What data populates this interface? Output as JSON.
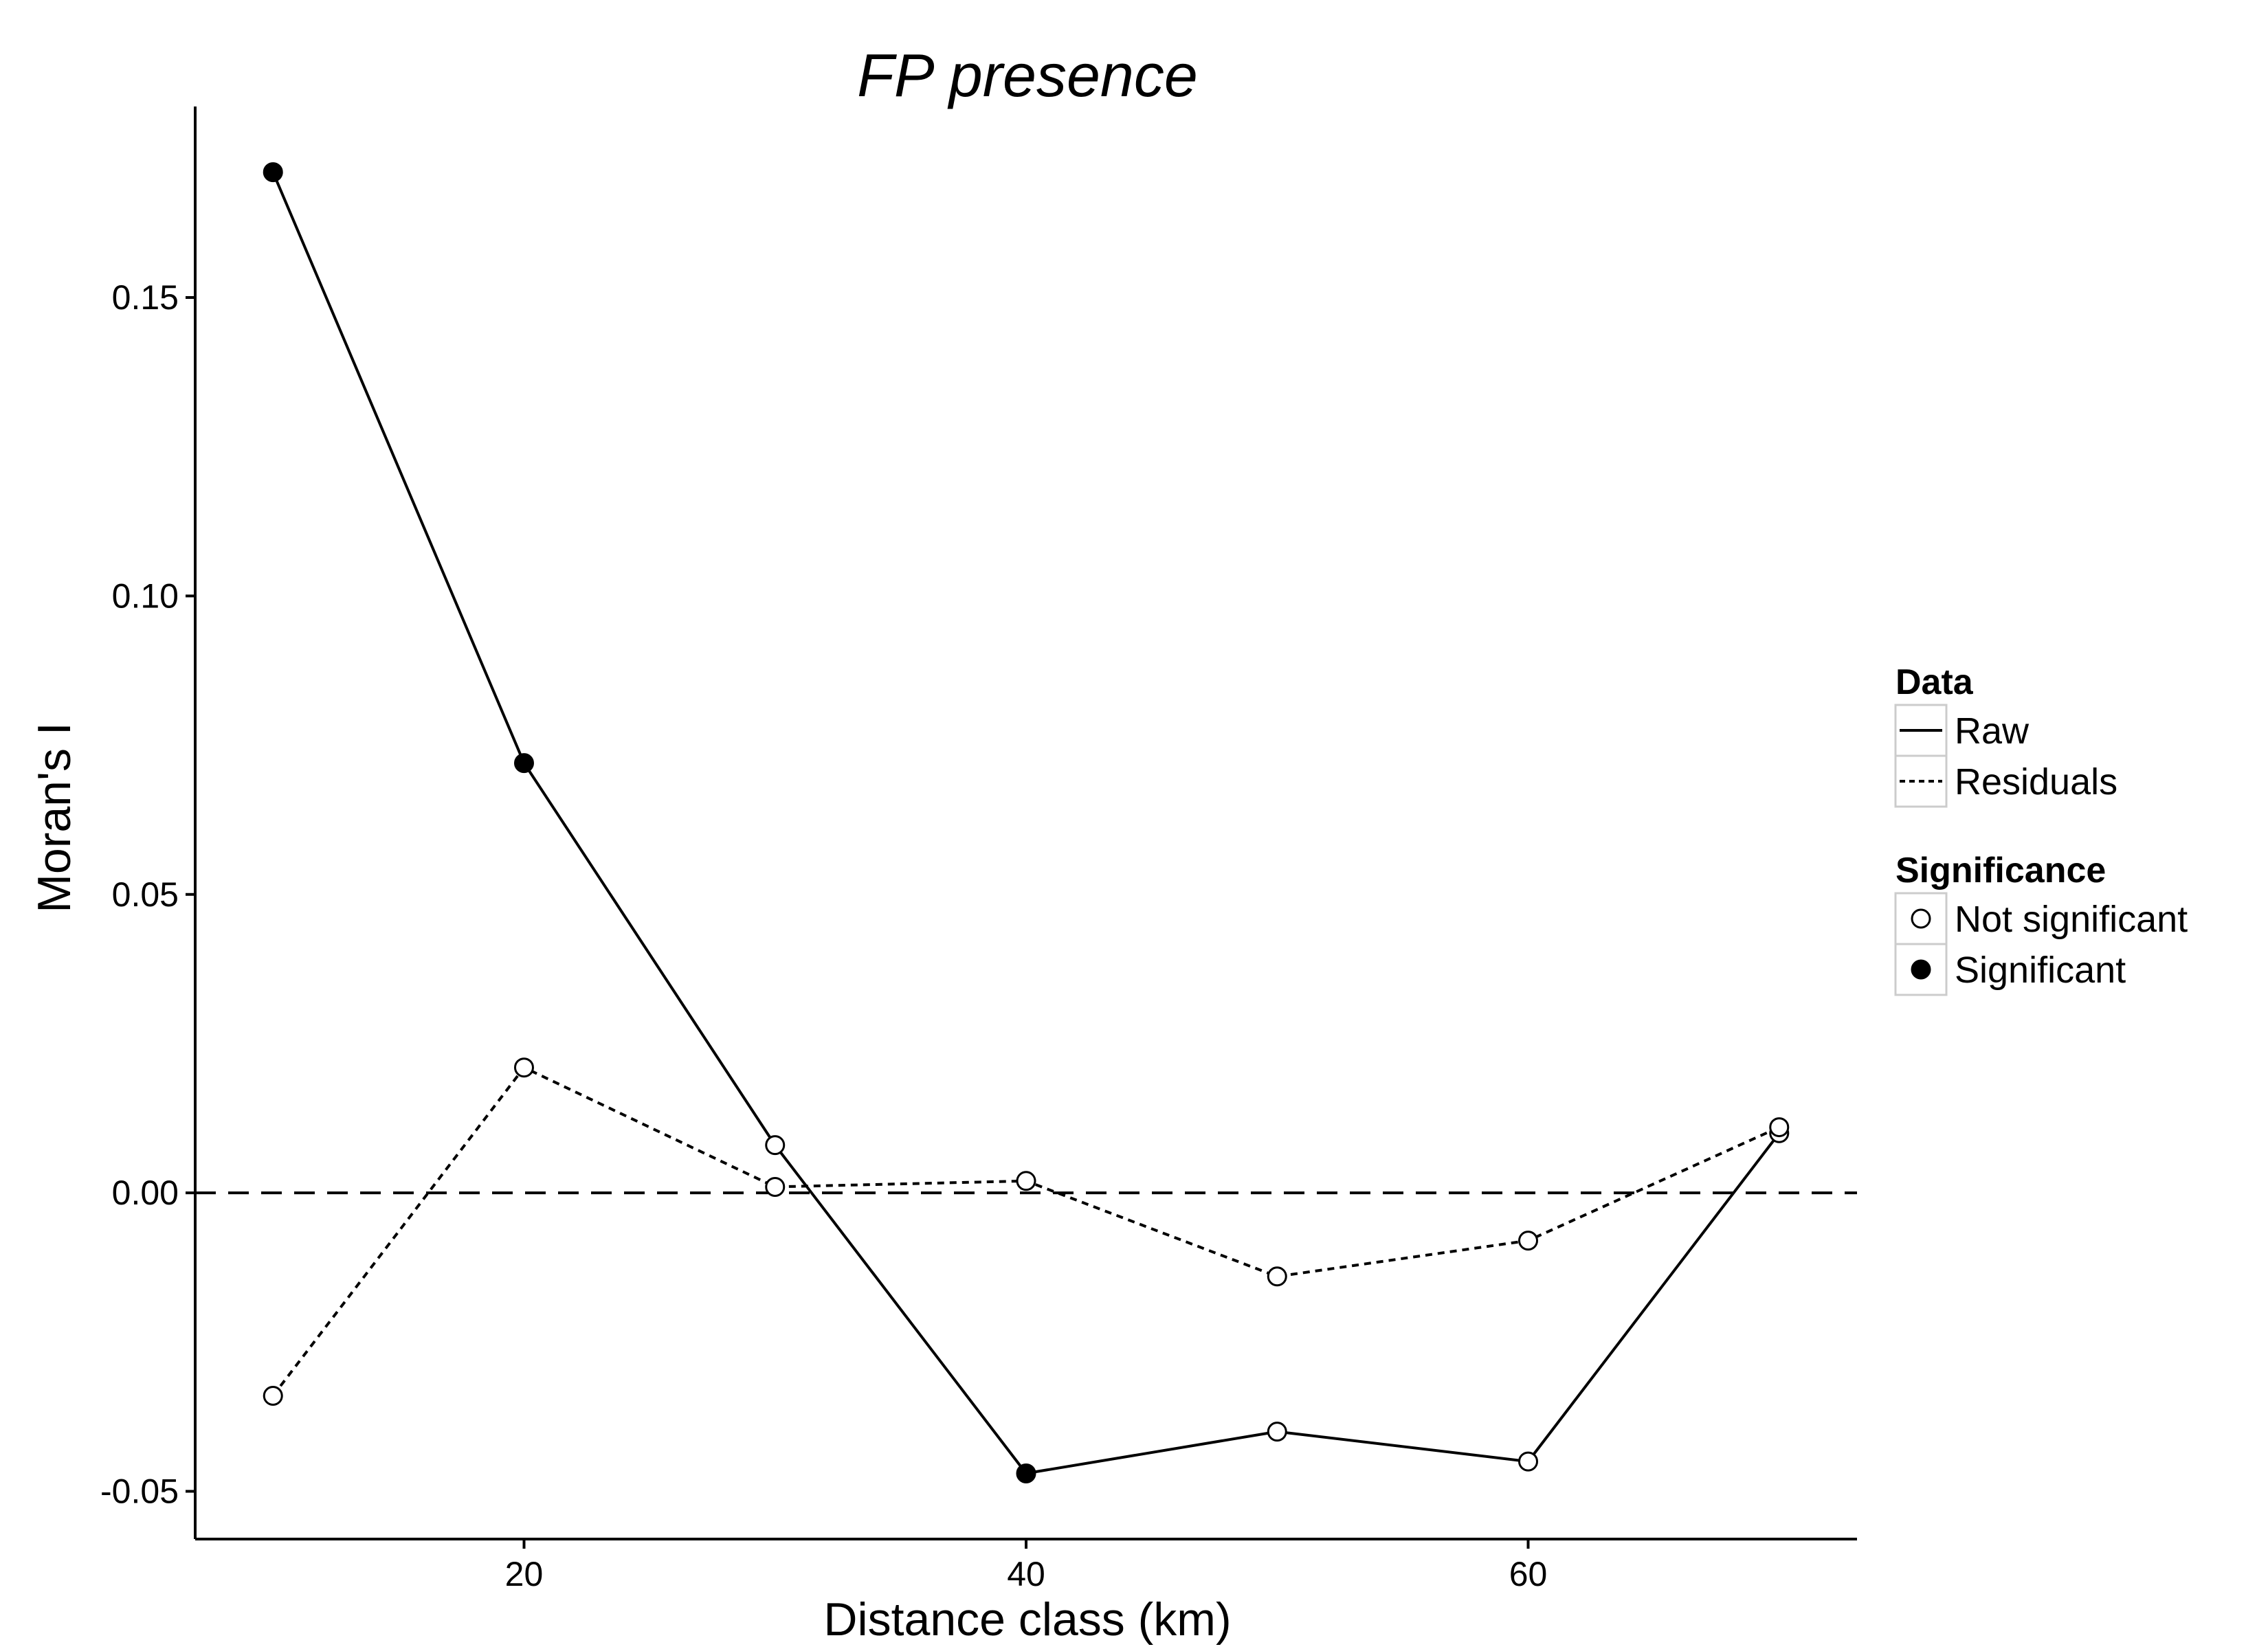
{
  "chart_data": {
    "type": "line",
    "title": "FP presence",
    "xlabel": "Distance class (km)",
    "ylabel": "Moran's I",
    "xlim": [
      6.9,
      73.1
    ],
    "ylim": [
      -0.058,
      0.182
    ],
    "x_ticks": [
      20,
      40,
      60
    ],
    "x_tick_labels": [
      "20",
      "40",
      "60"
    ],
    "y_ticks": [
      -0.05,
      0.0,
      0.05,
      0.1,
      0.15
    ],
    "y_tick_labels": [
      "-0.05",
      "0.00",
      "0.05",
      "0.10",
      "0.15"
    ],
    "reference_line": {
      "y": 0.0,
      "style": "dashed"
    },
    "grid": false,
    "series": [
      {
        "name": "Raw",
        "line_style": "solid",
        "x": [
          10,
          20,
          30,
          40,
          50,
          60,
          70
        ],
        "y": [
          0.171,
          0.072,
          0.008,
          -0.047,
          -0.04,
          -0.045,
          0.01
        ],
        "significant": [
          true,
          true,
          false,
          true,
          false,
          false,
          false
        ]
      },
      {
        "name": "Residuals",
        "line_style": "dotted",
        "x": [
          10,
          20,
          30,
          40,
          50,
          60,
          70
        ],
        "y": [
          -0.034,
          0.021,
          0.001,
          0.002,
          -0.014,
          -0.008,
          0.011
        ],
        "significant": [
          false,
          false,
          false,
          false,
          false,
          false,
          false
        ]
      }
    ],
    "legend": {
      "position": "right",
      "groups": [
        {
          "title": "Data",
          "items": [
            {
              "label": "Raw",
              "style": "solid"
            },
            {
              "label": "Residuals",
              "style": "dotted"
            }
          ]
        },
        {
          "title": "Significance",
          "items": [
            {
              "label": "Not significant",
              "marker": "open-circle"
            },
            {
              "label": "Significant",
              "marker": "filled-circle"
            }
          ]
        }
      ]
    },
    "colors": {
      "line": "#000000",
      "background": "#ffffff",
      "legend_key_border": "#cccccc"
    }
  }
}
